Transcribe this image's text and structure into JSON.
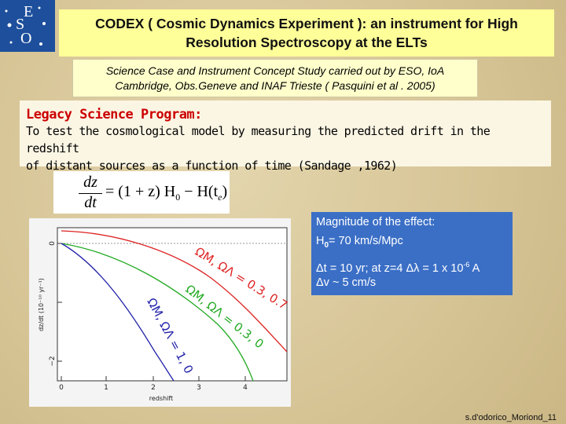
{
  "logo": {
    "letters": [
      "E",
      "S",
      "O"
    ]
  },
  "title": {
    "lines": [
      "CODEX ( Cosmic Dynamics Experiment ): an instrument for High",
      "Resolution Spectroscopy at the ELTs"
    ]
  },
  "subtitle": {
    "lines": [
      "Science Case and Instrument Concept Study carried out by ESO, IoA",
      "Cambridge, Obs.Geneve and INAF Trieste ( Pasquini et al . 2005)"
    ]
  },
  "legacy": {
    "heading": "Legacy Science Program:",
    "lines": [
      "To test the cosmological model by measuring the predicted drift in the redshift",
      "of distant sources as a function of time (Sandage ,1962)"
    ]
  },
  "equation": {
    "numerator": "dz",
    "denominator": "dt",
    "rhs": "= (1 + z) H",
    "sub0": "0",
    "minus": " − H(t",
    "sube": "e",
    "close": ")"
  },
  "plot": {
    "y_label": "dz/dt (10⁻¹⁰ yr⁻¹)",
    "x_label": "redshift",
    "xticks": [
      "0",
      "1",
      "2",
      "3",
      "4"
    ],
    "yticks": [
      "0",
      "−2"
    ],
    "curve_labels": [
      "ΩM, ΩΛ = 0.3, 0.7",
      "ΩM, ΩΛ = 0.3, 0",
      "ΩM, ΩΛ = 1, 0"
    ]
  },
  "magnitude": {
    "heading": "Magnitude of the effect:",
    "h0": "H",
    "h0_sub": "0",
    "h0_rest": "= 70 km/s/Mpc",
    "dt_line": "Δt = 10 yr; at z=4 Δλ = 1 x 10",
    "dt_sup": "-6",
    "dt_unit": " A",
    "dv_line": "Δv ~ 5 cm/s"
  },
  "footer": "s.d'odorico_Moriond_11"
}
